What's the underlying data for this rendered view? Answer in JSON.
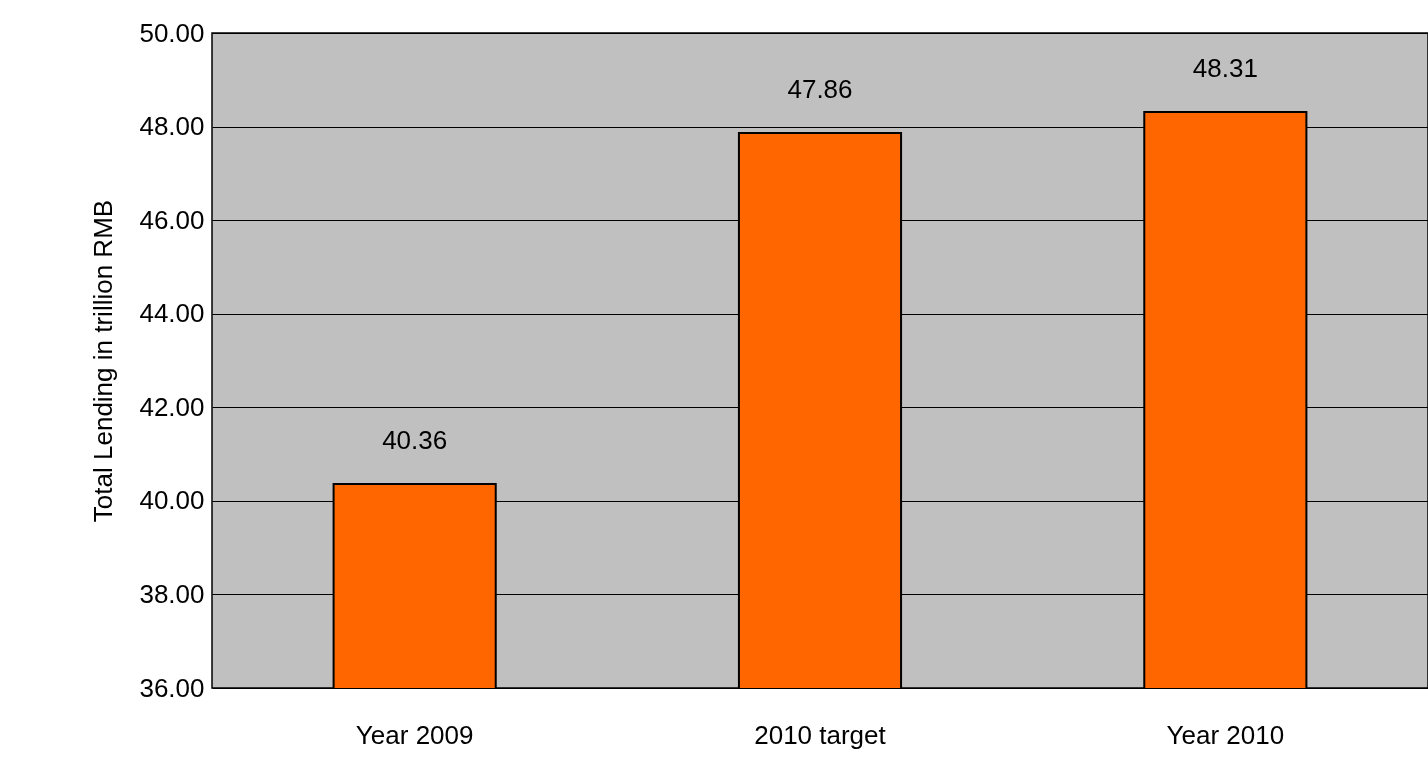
{
  "chart_data": {
    "type": "bar",
    "ylabel": "Total Lending in trillion RMB",
    "categories": [
      "Year 2009",
      "2010 target",
      "Year 2010"
    ],
    "values": [
      40.36,
      47.86,
      48.31
    ],
    "color": "#ff6600",
    "ylim": [
      36,
      50
    ],
    "yticks": [
      {
        "value": 36,
        "label": "36.00"
      },
      {
        "value": 38,
        "label": "38.00"
      },
      {
        "value": 40,
        "label": "40.00"
      },
      {
        "value": 42,
        "label": "42.00"
      },
      {
        "value": 44,
        "label": "44.00"
      },
      {
        "value": 46,
        "label": "46.00"
      },
      {
        "value": 48,
        "label": "48.00"
      },
      {
        "value": 50,
        "label": "50.00"
      }
    ],
    "grid": "y",
    "data_labels": true
  }
}
